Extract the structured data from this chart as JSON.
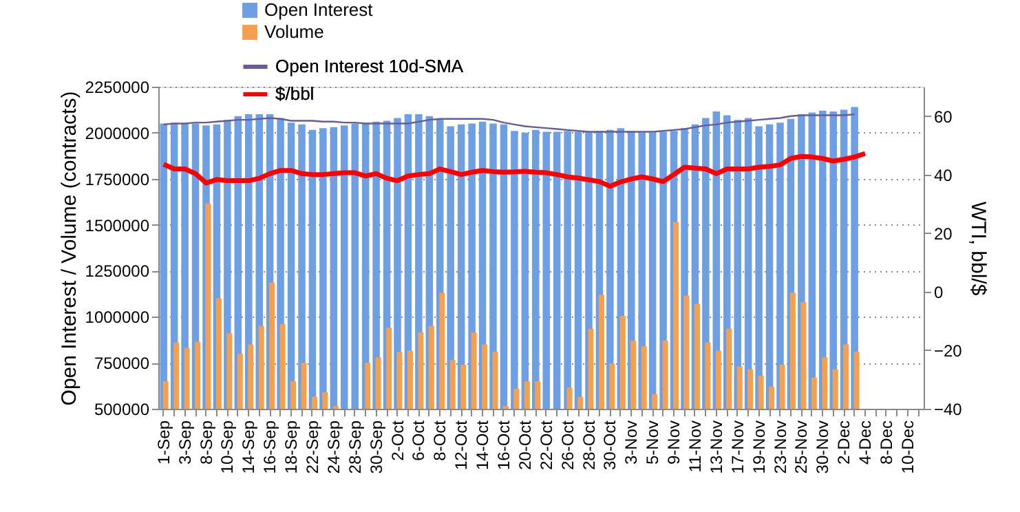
{
  "chart_data": {
    "type": "bar",
    "categories": [
      "1-Sep",
      null,
      "3-Sep",
      null,
      "8-Sep",
      null,
      "10-Sep",
      null,
      "14-Sep",
      null,
      "16-Sep",
      null,
      "18-Sep",
      null,
      "22-Sep",
      null,
      "24-Sep",
      null,
      "28-Sep",
      null,
      "30-Sep",
      null,
      "2-Oct",
      null,
      "6-Oct",
      null,
      "8-Oct",
      null,
      "12-Oct",
      null,
      "14-Oct",
      null,
      "16-Oct",
      null,
      "20-Oct",
      null,
      "22-Oct",
      null,
      "26-Oct",
      null,
      "28-Oct",
      null,
      "30-Oct",
      null,
      "3-Nov",
      null,
      "5-Nov",
      null,
      "9-Nov",
      null,
      "11-Nov",
      null,
      "13-Nov",
      null,
      "17-Nov",
      null,
      "19-Nov",
      null,
      "23-Nov",
      null,
      "25-Nov",
      null,
      "30-Nov",
      null,
      "2-Dec",
      null,
      "4-Dec",
      null,
      "8-Dec",
      null,
      "10-Dec",
      null
    ],
    "series": [
      {
        "name": "Open Interest",
        "color": "#6f9fe3",
        "values": [
          2050000,
          2055000,
          2050000,
          2050000,
          2040000,
          2045000,
          2070000,
          2090000,
          2100000,
          2100000,
          2100000,
          2080000,
          2055000,
          2045000,
          2015000,
          2025000,
          2030000,
          2040000,
          2050000,
          2055000,
          2060000,
          2065000,
          2080000,
          2100000,
          2100000,
          2090000,
          2075000,
          2035000,
          2045000,
          2050000,
          2060000,
          2050000,
          2045000,
          2010000,
          2000000,
          2015000,
          2005000,
          2005000,
          2010000,
          2005000,
          2005000,
          2010000,
          2015000,
          2025000,
          2010000,
          2000000,
          2000000,
          2005000,
          2010000,
          2025000,
          2045000,
          2080000,
          2115000,
          2095000,
          2070000,
          2080000,
          2035000,
          2045000,
          2055000,
          2075000,
          2100000,
          2110000,
          2120000,
          2115000,
          2125000,
          2140000,
          null,
          null,
          null,
          null,
          null,
          null
        ]
      },
      {
        "name": "Volume",
        "color": "#f5a04e",
        "values": [
          650000,
          860000,
          830000,
          865000,
          1615000,
          1100000,
          910000,
          800000,
          850000,
          950000,
          1185000,
          960000,
          650000,
          750000,
          565000,
          590000,
          515000,
          null,
          null,
          750000,
          780000,
          940000,
          810000,
          815000,
          915000,
          950000,
          1130000,
          765000,
          740000,
          915000,
          850000,
          810000,
          515000,
          610000,
          650000,
          650000,
          null,
          null,
          615000,
          565000,
          935000,
          1120000,
          745000,
          1005000,
          870000,
          840000,
          580000,
          870000,
          1515000,
          1115000,
          1070000,
          860000,
          815000,
          935000,
          730000,
          715000,
          680000,
          620000,
          740000,
          1130000,
          1080000,
          670000,
          780000,
          715000,
          850000,
          810000,
          null,
          null,
          null,
          null,
          null,
          null
        ]
      },
      {
        "name": "Open Interest 10d-SMA",
        "type": "line",
        "color": "#6a5a9a",
        "values": [
          2045000,
          2050000,
          2050000,
          2055000,
          2055000,
          2060000,
          2065000,
          2070000,
          2070000,
          2075000,
          2080000,
          2075000,
          2065000,
          2065000,
          2065000,
          2060000,
          2060000,
          2055000,
          2055000,
          2050000,
          2050000,
          2050000,
          2050000,
          2050000,
          2060000,
          2070000,
          2075000,
          2075000,
          2075000,
          2075000,
          2075000,
          2070000,
          2055000,
          2045000,
          2035000,
          2030000,
          2025000,
          2020000,
          2015000,
          2010000,
          2005000,
          2005000,
          2005000,
          2005000,
          2005000,
          2005000,
          2005000,
          2010000,
          2015000,
          2020000,
          2030000,
          2040000,
          2045000,
          2055000,
          2060000,
          2065000,
          2070000,
          2075000,
          2080000,
          2090000,
          2095000,
          2095000,
          2095000,
          2095000,
          2095000,
          2100000,
          null,
          null,
          null,
          null,
          null,
          null
        ]
      },
      {
        "name": "$/bbl",
        "type": "line",
        "axis": "y2",
        "color": "#ff0000",
        "values": [
          43.5,
          41.9,
          41.9,
          40.3,
          37.1,
          38.3,
          37.9,
          37.9,
          37.9,
          38.7,
          40.3,
          41.4,
          41.4,
          40.3,
          40.0,
          40.0,
          40.3,
          40.6,
          40.6,
          39.5,
          40.3,
          38.7,
          37.9,
          39.5,
          40.0,
          40.3,
          41.9,
          41.0,
          40.0,
          40.8,
          41.4,
          41.0,
          40.8,
          40.9,
          41.1,
          40.8,
          40.6,
          40.0,
          39.2,
          38.8,
          38.2,
          37.6,
          36.0,
          37.5,
          38.5,
          39.2,
          38.5,
          37.6,
          40.0,
          42.5,
          42.2,
          41.9,
          40.3,
          41.9,
          41.9,
          41.9,
          42.5,
          42.8,
          43.3,
          45.5,
          46.2,
          46.0,
          45.5,
          44.6,
          45.2,
          46.0,
          47.2,
          null,
          null,
          null,
          null,
          null
        ]
      }
    ],
    "ylabel": "Open Interest / Volume (contracts)",
    "y2label": "WTI, bbl/$",
    "ylim": [
      500000,
      2250000
    ],
    "yticks": [
      500000,
      750000,
      1000000,
      1250000,
      1500000,
      1750000,
      2000000,
      2250000
    ],
    "y2lim": [
      -40,
      70
    ],
    "y2ticks": [
      -40,
      -20,
      0,
      20,
      40,
      60
    ],
    "grid": "y",
    "legend": "top"
  }
}
